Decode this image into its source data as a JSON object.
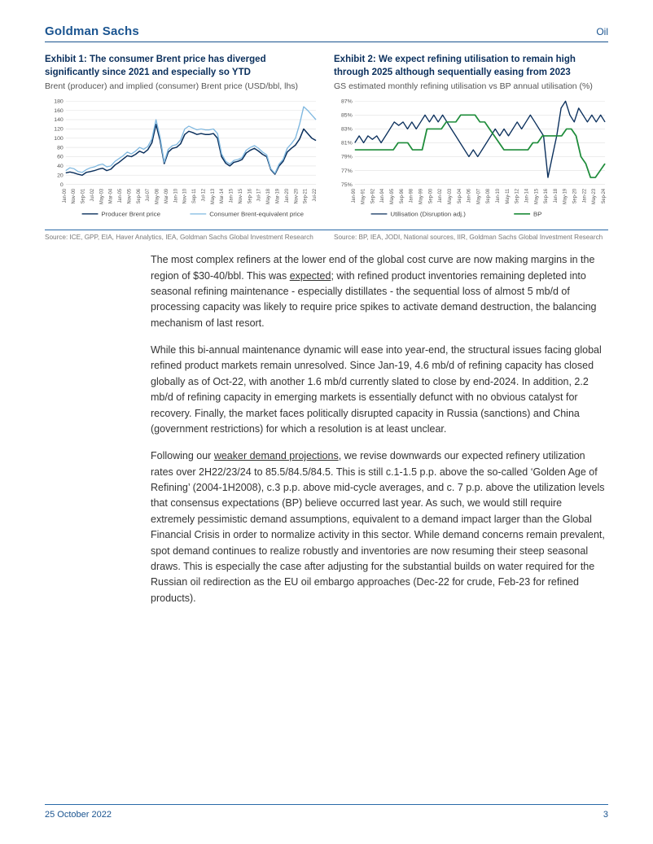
{
  "header": {
    "brand": "Goldman Sachs",
    "category": "Oil"
  },
  "exhibit1": {
    "title": "Exhibit 1: The consumer Brent price has diverged significantly since 2021 and especially so YTD",
    "subtitle": "Brent (producer) and implied (consumer) Brent price (USD/bbl, lhs)",
    "source": "Source: ICE, GPP, EIA, Haver Analytics, IEA, Goldman Sachs Global Investment Research",
    "chart": {
      "type": "line",
      "background_color": "#ffffff",
      "grid_color": "#e6e6e6",
      "ylim": [
        0,
        180
      ],
      "ytick_step": 20,
      "yticks": [
        0,
        20,
        40,
        60,
        80,
        100,
        120,
        140,
        160,
        180
      ],
      "x_labels": [
        "Jan-00",
        "Nov-00",
        "Sep-01",
        "Jul-02",
        "May-03",
        "Mar-04",
        "Jan-05",
        "Nov-05",
        "Sep-06",
        "Jul-07",
        "May-08",
        "Mar-09",
        "Jan-10",
        "Nov-10",
        "Sep-11",
        "Jul-12",
        "May-13",
        "Mar-14",
        "Jan-15",
        "Nov-15",
        "Sep-16",
        "Jul-17",
        "May-18",
        "Mar-19",
        "Jan-20",
        "Nov-20",
        "Sep-21",
        "Jul-22"
      ],
      "series": [
        {
          "name": "Producer Brent price",
          "color": "#0a2f5c",
          "width": 1.6,
          "values": [
            25,
            27,
            25,
            22,
            20,
            26,
            28,
            30,
            33,
            35,
            30,
            33,
            42,
            48,
            55,
            62,
            60,
            65,
            72,
            68,
            75,
            90,
            130,
            95,
            45,
            70,
            78,
            80,
            88,
            108,
            115,
            112,
            108,
            110,
            108,
            108,
            110,
            100,
            60,
            46,
            40,
            48,
            50,
            54,
            68,
            74,
            78,
            72,
            65,
            60,
            32,
            22,
            40,
            50,
            70,
            78,
            85,
            98,
            120,
            110,
            100,
            95
          ]
        },
        {
          "name": "Consumer Brent-equivalent price",
          "color": "#7fb8e0",
          "width": 1.4,
          "values": [
            30,
            36,
            34,
            28,
            26,
            32,
            36,
            38,
            42,
            44,
            38,
            40,
            50,
            56,
            62,
            70,
            66,
            72,
            80,
            76,
            82,
            98,
            140,
            102,
            48,
            76,
            84,
            86,
            96,
            120,
            126,
            122,
            118,
            120,
            118,
            118,
            120,
            110,
            66,
            50,
            44,
            52,
            54,
            58,
            74,
            80,
            84,
            78,
            70,
            64,
            34,
            24,
            44,
            54,
            78,
            88,
            100,
            130,
            168,
            160,
            150,
            140
          ]
        }
      ],
      "legend": [
        "Producer Brent price",
        "Consumer Brent-equivalent price"
      ],
      "axis_font_size": 7,
      "legend_font_size": 8
    }
  },
  "exhibit2": {
    "title": "Exhibit 2: We expect refining utilisation to remain high through 2025 although sequentially easing from 2023",
    "subtitle": "GS estimated monthly refining utilisation vs BP annual utilisation (%)",
    "source": "Source: BP, IEA, JODI, National sources, IIR, Goldman Sachs Global Investment Research",
    "chart": {
      "type": "line",
      "background_color": "#ffffff",
      "grid_color": "#e6e6e6",
      "ylim": [
        75,
        87
      ],
      "ytick_step": 2,
      "yticks": [
        "75%",
        "77%",
        "79%",
        "81%",
        "83%",
        "85%",
        "87%"
      ],
      "x_labels": [
        "Jan-90",
        "May-91",
        "Sep-92",
        "Jan-94",
        "May-95",
        "Sep-96",
        "Jan-98",
        "May-99",
        "Sep-00",
        "Jan-02",
        "May-03",
        "Sep-04",
        "Jan-06",
        "May-07",
        "Sep-08",
        "Jan-10",
        "May-11",
        "Sep-12",
        "Jan-14",
        "May-15",
        "Sep-16",
        "Jan-18",
        "May-19",
        "Sep-20",
        "Jan-22",
        "May-23",
        "Sep-24"
      ],
      "series": [
        {
          "name": "Utilisation (Disruption adj.)",
          "color": "#0a2f5c",
          "width": 1.4,
          "values": [
            81,
            82,
            81,
            82,
            81.5,
            82,
            81,
            82,
            83,
            84,
            83.5,
            84,
            83,
            84,
            83,
            84,
            85,
            84,
            85,
            84,
            85,
            84,
            83,
            82,
            81,
            80,
            79,
            80,
            79,
            80,
            81,
            82,
            83,
            82,
            83,
            82,
            83,
            84,
            83,
            84,
            85,
            84,
            83,
            82,
            76,
            79,
            82,
            86,
            87,
            85,
            84,
            86,
            85,
            84,
            85,
            84,
            85,
            84
          ]
        },
        {
          "name": "BP",
          "color": "#1e8c3a",
          "width": 1.8,
          "values": [
            80,
            80,
            80,
            80,
            80,
            80,
            80,
            80,
            80,
            81,
            81,
            81,
            80,
            80,
            80,
            83,
            83,
            83,
            83,
            84,
            84,
            84,
            85,
            85,
            85,
            85,
            84,
            84,
            83,
            82,
            81,
            80,
            80,
            80,
            80,
            80,
            80,
            81,
            81,
            82,
            82,
            82,
            82,
            82,
            83,
            83,
            82,
            79,
            78,
            76,
            76,
            77,
            78
          ]
        }
      ],
      "legend": [
        "Utilisation (Disruption adj.)",
        "BP"
      ],
      "axis_font_size": 7,
      "legend_font_size": 8
    }
  },
  "body": {
    "p1a": "The most complex refiners at the lower end of the global cost curve are now making margins in the region of $30-40/bbl. This was ",
    "p1_link": "expected",
    "p1b": "; with refined product inventories remaining depleted into seasonal refining maintenance - especially distillates - the sequential loss of almost 5 mb/d of processing capacity was likely to require price spikes to activate demand destruction, the balancing mechanism of last resort.",
    "p2": "While this bi-annual maintenance dynamic will ease into year-end, the structural issues facing global refined product markets remain unresolved. Since Jan-19, 4.6 mb/d of refining capacity has closed globally as of Oct-22, with another 1.6 mb/d currently slated to close by end-2024. In addition, 2.2 mb/d of refining capacity in emerging markets is essentially defunct with no obvious catalyst for recovery. Finally, the market faces politically disrupted capacity in Russia (sanctions) and China (government restrictions) for which a resolution is at least unclear.",
    "p3a": "Following our ",
    "p3_link": "weaker demand projections",
    "p3b": ", we revise downwards our expected refinery utilization rates over 2H22/23/24 to 85.5/84.5/84.5. This is still c.1-1.5 p.p. above the so-called ‘Golden Age of Refining’ (2004-1H2008), c.3 p.p. above mid-cycle averages, and c. 7 p.p. above the utilization levels that consensus expectations (BP) believe occurred last year. As such, we would still require extremely pessimistic demand assumptions, equivalent to a demand impact larger than the Global Financial Crisis in order to normalize activity in this sector. While demand concerns remain prevalent, spot demand continues to realize robustly and inventories are now resuming their steep seasonal draws. This is especially the case after adjusting for the substantial builds on water required for the Russian oil redirection as the EU oil embargo approaches (Dec-22 for crude, Feb-23 for refined products)."
  },
  "footer": {
    "date": "25 October 2022",
    "page": "3"
  }
}
